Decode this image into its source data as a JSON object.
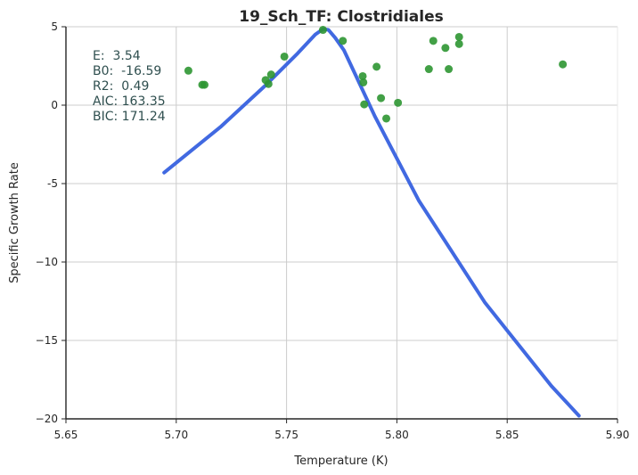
{
  "chart_data": {
    "type": "scatter",
    "title": "19_Sch_TF: Clostridiales",
    "xlabel": "Temperature (K)",
    "ylabel": "Specific Growth Rate",
    "xlim": [
      5.65,
      5.9
    ],
    "ylim": [
      -20,
      5
    ],
    "x_ticks": [
      5.65,
      5.7,
      5.75,
      5.8,
      5.85,
      5.9
    ],
    "x_tick_labels": [
      "5.65",
      "5.70",
      "5.75",
      "5.80",
      "5.85",
      "5.90"
    ],
    "y_ticks": [
      5,
      0,
      -5,
      -10,
      -15,
      -20
    ],
    "y_tick_labels": [
      "5",
      "0",
      "-5",
      "−10",
      "−15",
      "−20"
    ],
    "grid": true,
    "colors": {
      "points": "#2e9632",
      "fit_line": "#4169e1",
      "text": "#2f4f4f"
    },
    "points": [
      {
        "x": 5.7055,
        "y": 2.2
      },
      {
        "x": 5.7118,
        "y": 1.3
      },
      {
        "x": 5.7128,
        "y": 1.3
      },
      {
        "x": 5.7405,
        "y": 1.6
      },
      {
        "x": 5.7418,
        "y": 1.35
      },
      {
        "x": 5.743,
        "y": 1.95
      },
      {
        "x": 5.749,
        "y": 3.1
      },
      {
        "x": 5.7665,
        "y": 4.8
      },
      {
        "x": 5.7755,
        "y": 4.1
      },
      {
        "x": 5.7845,
        "y": 1.85
      },
      {
        "x": 5.7848,
        "y": 1.45
      },
      {
        "x": 5.7852,
        "y": 0.05
      },
      {
        "x": 5.7908,
        "y": 2.45
      },
      {
        "x": 5.7928,
        "y": 0.45
      },
      {
        "x": 5.7952,
        "y": -0.85
      },
      {
        "x": 5.8005,
        "y": 0.15
      },
      {
        "x": 5.8145,
        "y": 2.3
      },
      {
        "x": 5.8165,
        "y": 4.1
      },
      {
        "x": 5.822,
        "y": 3.65
      },
      {
        "x": 5.8235,
        "y": 2.3
      },
      {
        "x": 5.8282,
        "y": 4.35
      },
      {
        "x": 5.8282,
        "y": 3.9
      },
      {
        "x": 5.8752,
        "y": 2.6
      }
    ],
    "fit_line": [
      {
        "x": 5.6945,
        "y": -4.3
      },
      {
        "x": 5.72,
        "y": -1.4
      },
      {
        "x": 5.74,
        "y": 1.2
      },
      {
        "x": 5.755,
        "y": 3.3
      },
      {
        "x": 5.763,
        "y": 4.5
      },
      {
        "x": 5.7665,
        "y": 4.85
      },
      {
        "x": 5.769,
        "y": 4.8
      },
      {
        "x": 5.772,
        "y": 4.3
      },
      {
        "x": 5.776,
        "y": 3.5
      },
      {
        "x": 5.78,
        "y": 2.3
      },
      {
        "x": 5.79,
        "y": -0.7
      },
      {
        "x": 5.81,
        "y": -6.1
      },
      {
        "x": 5.84,
        "y": -12.6
      },
      {
        "x": 5.87,
        "y": -17.9
      },
      {
        "x": 5.8825,
        "y": -19.8
      }
    ],
    "stats": [
      "E:  3.54",
      "B0:  -16.59",
      "R2:  0.49",
      "AIC: 163.35",
      "BIC: 171.24"
    ]
  }
}
